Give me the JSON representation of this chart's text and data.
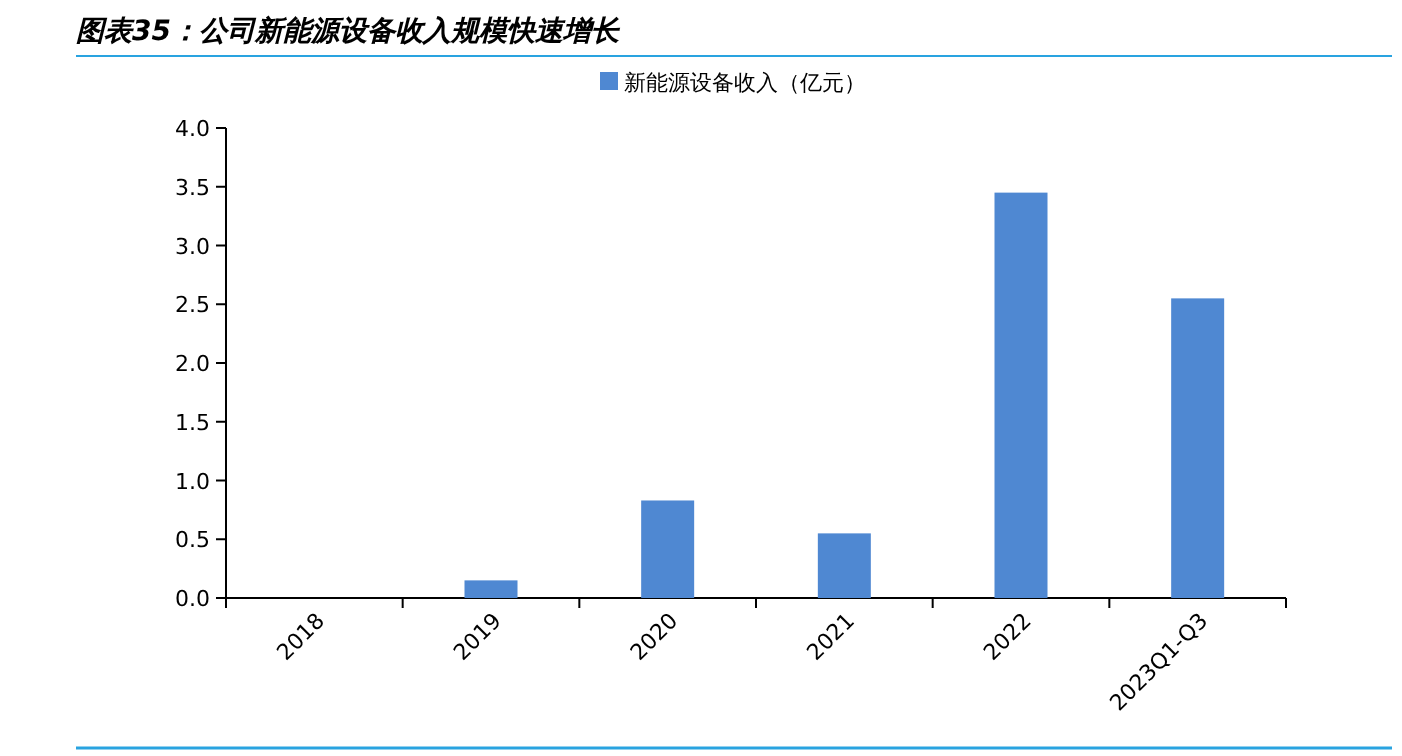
{
  "chart_data": {
    "type": "bar",
    "title": "图表35：公司新能源设备收入规模快速增长",
    "categories": [
      "2018",
      "2019",
      "2020",
      "2021",
      "2022",
      "2023Q1-Q3"
    ],
    "series": [
      {
        "name": "新能源设备收入（亿元）",
        "color": "#4f88d2",
        "values": [
          0,
          0.15,
          0.83,
          0.55,
          3.45,
          2.55
        ]
      }
    ],
    "ylim": [
      0,
      4
    ],
    "yticks": [
      {
        "value": 0,
        "label": "0.0"
      },
      0.5,
      {
        "value": 1,
        "label": "1.0"
      },
      1.5,
      {
        "value": 2,
        "label": "2.0"
      },
      2.5,
      {
        "value": 3,
        "label": "3.0"
      },
      3.5,
      {
        "value": 4,
        "label": "4.0"
      }
    ],
    "legend": "top",
    "grid": false
  }
}
